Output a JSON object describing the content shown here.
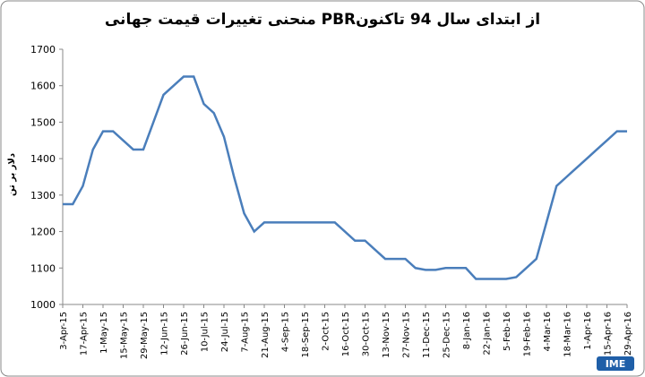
{
  "chart_data": {
    "type": "line",
    "title": "منحنی تغییرات قیمت جهانی PBRاز ابتدای سال 94 تاکنون",
    "y_label": "دلار بر تن",
    "logo": "IME",
    "categories": [
      "3-Apr-15",
      null,
      "17-Apr-15",
      null,
      "1-May-15",
      null,
      "15-May-15",
      null,
      "29-May-15",
      null,
      "12-Jun-15",
      null,
      "26-Jun-15",
      null,
      "10-Jul-15",
      null,
      "24-Jul-15",
      null,
      "7-Aug-15",
      null,
      "21-Aug-15",
      null,
      "4-Sep-15",
      null,
      "18-Sep-15",
      null,
      "2-Oct-15",
      null,
      "16-Oct-15",
      null,
      "30-Oct-15",
      null,
      "13-Nov-15",
      null,
      "27-Nov-15",
      null,
      "11-Dec-15",
      null,
      "25-Dec-15",
      null,
      "8-Jan-16",
      null,
      "22-Jan-16",
      null,
      "5-Feb-16",
      null,
      "19-Feb-16",
      null,
      "4-Mar-16",
      null,
      "18-Mar-16",
      null,
      "1-Apr-16",
      null,
      "15-Apr-16",
      null,
      "29-Apr-16"
    ],
    "series": [
      {
        "name": "PBR",
        "color": "#4a7ebb",
        "values": [
          1275,
          1275,
          1325,
          1425,
          1475,
          1475,
          1450,
          1425,
          1425,
          1500,
          1575,
          1600,
          1625,
          1625,
          1550,
          1525,
          1460,
          1350,
          1250,
          1200,
          1225,
          1225,
          1225,
          1225,
          1225,
          1225,
          1225,
          1225,
          1200,
          1175,
          1175,
          1150,
          1125,
          1125,
          1125,
          1100,
          1095,
          1095,
          1100,
          1100,
          1100,
          1070,
          1070,
          1070,
          1070,
          1075,
          1100,
          1125,
          1225,
          1325,
          1350,
          1375,
          1400,
          1425,
          1450,
          1475,
          1475
        ]
      }
    ],
    "ylim": [
      1000,
      1700
    ],
    "yticks": [
      1000,
      1100,
      1200,
      1300,
      1400,
      1500,
      1600,
      1700
    ],
    "grid": false
  }
}
